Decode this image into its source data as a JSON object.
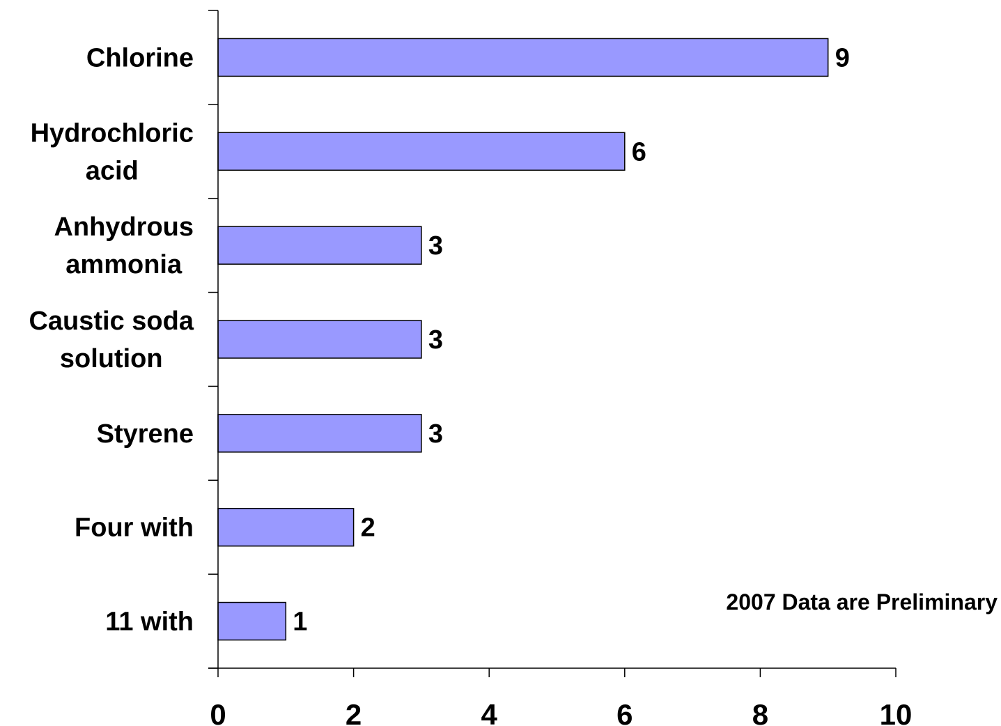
{
  "chart_data": {
    "type": "bar",
    "orientation": "horizontal",
    "categories": [
      [
        "Chlorine"
      ],
      [
        "Hydrochloric",
        "acid"
      ],
      [
        "Anhydrous",
        "ammonia"
      ],
      [
        "Caustic soda",
        "solution"
      ],
      [
        "Styrene"
      ],
      [
        "Four with"
      ],
      [
        "11 with"
      ]
    ],
    "values": [
      9,
      6,
      3,
      3,
      3,
      2,
      1
    ],
    "data_labels": [
      "9",
      "6",
      "3",
      "3",
      "3",
      "2",
      "1"
    ],
    "xlim": [
      0,
      10
    ],
    "xticks": [
      0,
      2,
      4,
      6,
      8,
      10
    ],
    "xtick_labels": [
      "0",
      "2",
      "4",
      "6",
      "8",
      "10"
    ],
    "title": "",
    "xlabel": "",
    "ylabel": "",
    "annotation": "2007 Data are Preliminary",
    "grid": false,
    "bar_color": "#9999ff",
    "bar_edge_color": "#000000"
  }
}
